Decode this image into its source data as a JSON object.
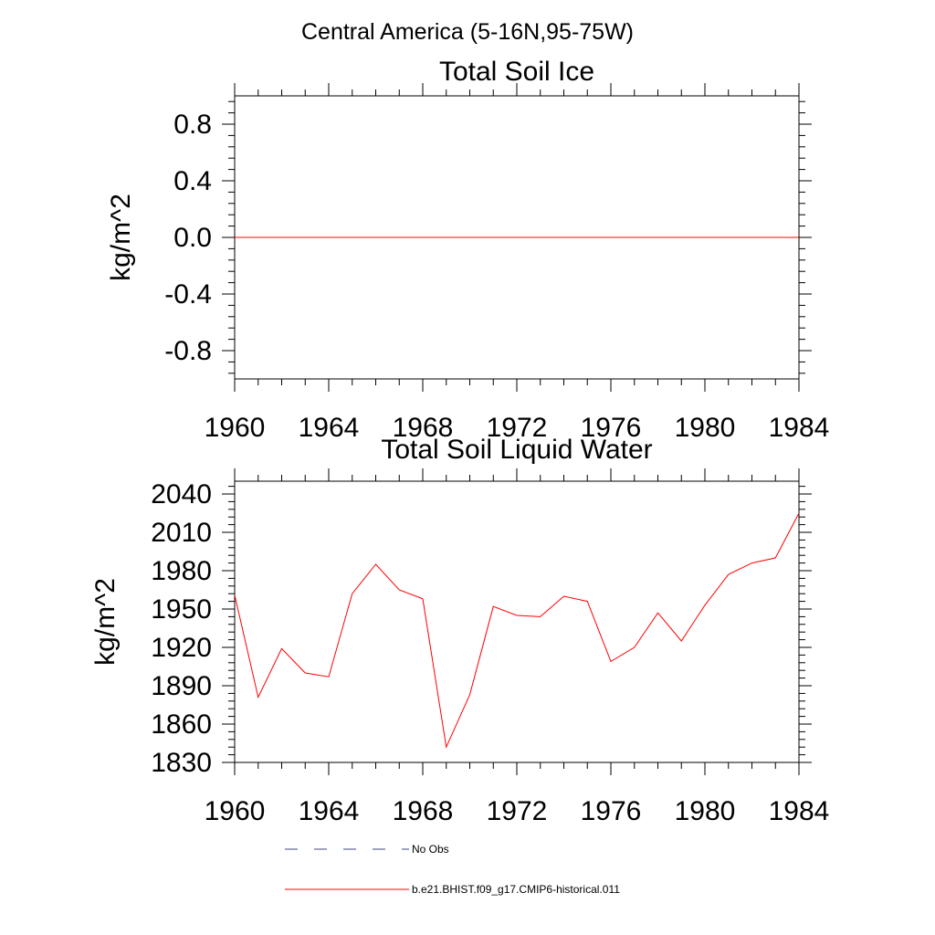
{
  "page_title": "Central America (5-16N,95-75W)",
  "colors": {
    "model_line": "#ff0000",
    "obs_line": "#3d4a82",
    "frame": "#000000"
  },
  "chart_data": [
    {
      "type": "line",
      "title": "Total Soil Ice",
      "xlabel": "",
      "ylabel": "kg/m^2",
      "xlim": [
        1960,
        1984
      ],
      "ylim": [
        -1.0,
        1.0
      ],
      "x_ticks": [
        1960,
        1964,
        1968,
        1972,
        1976,
        1980,
        1984
      ],
      "x_tick_labels": [
        "1960",
        "1964",
        "1968",
        "1972",
        "1976",
        "1980",
        "1984"
      ],
      "y_ticks": [
        0.8,
        0.4,
        0.0,
        -0.4,
        -0.8
      ],
      "y_tick_labels": [
        "0.8",
        "0.4",
        "0.0",
        "-0.4",
        "-0.8"
      ],
      "grid": false,
      "series": [
        {
          "name": "b.e21.BHIST.f09_g17.CMIP6-historical.011",
          "color": "#ff0000",
          "x": [
            1960,
            1961,
            1962,
            1963,
            1964,
            1965,
            1966,
            1967,
            1968,
            1969,
            1970,
            1971,
            1972,
            1973,
            1974,
            1975,
            1976,
            1977,
            1978,
            1979,
            1980,
            1981,
            1982,
            1983,
            1984
          ],
          "values": [
            0,
            0,
            0,
            0,
            0,
            0,
            0,
            0,
            0,
            0,
            0,
            0,
            0,
            0,
            0,
            0,
            0,
            0,
            0,
            0,
            0,
            0,
            0,
            0,
            0
          ]
        }
      ]
    },
    {
      "type": "line",
      "title": "Total Soil Liquid Water",
      "xlabel": "",
      "ylabel": "kg/m^2",
      "xlim": [
        1960,
        1984
      ],
      "ylim": [
        1830,
        2050
      ],
      "x_ticks": [
        1960,
        1964,
        1968,
        1972,
        1976,
        1980,
        1984
      ],
      "x_tick_labels": [
        "1960",
        "1964",
        "1968",
        "1972",
        "1976",
        "1980",
        "1984"
      ],
      "y_ticks": [
        1830,
        1860,
        1890,
        1920,
        1950,
        1980,
        2010,
        2040
      ],
      "y_tick_labels": [
        "1830",
        "1860",
        "1890",
        "1920",
        "1950",
        "1980",
        "2010",
        "2040"
      ],
      "grid": false,
      "series": [
        {
          "name": "b.e21.BHIST.f09_g17.CMIP6-historical.011",
          "color": "#ff0000",
          "x": [
            1960,
            1961,
            1962,
            1963,
            1964,
            1965,
            1966,
            1967,
            1968,
            1969,
            1970,
            1971,
            1972,
            1973,
            1974,
            1975,
            1976,
            1977,
            1978,
            1979,
            1980,
            1981,
            1982,
            1983,
            1984
          ],
          "values": [
            1961,
            1881,
            1919,
            1900,
            1897,
            1962,
            1985,
            1965,
            1958,
            1842,
            1883,
            1952,
            1945,
            1944,
            1960,
            1956,
            1909,
            1920,
            1947,
            1925,
            1953,
            1977,
            1986,
            1990,
            2025
          ]
        }
      ]
    }
  ],
  "legend": {
    "placement": "bottom",
    "entries": [
      {
        "label": "No Obs",
        "style": "dashed",
        "color": "#3d4a82"
      },
      {
        "label": "b.e21.BHIST.f09_g17.CMIP6-historical.011",
        "style": "solid",
        "color": "#ff0000"
      }
    ]
  }
}
